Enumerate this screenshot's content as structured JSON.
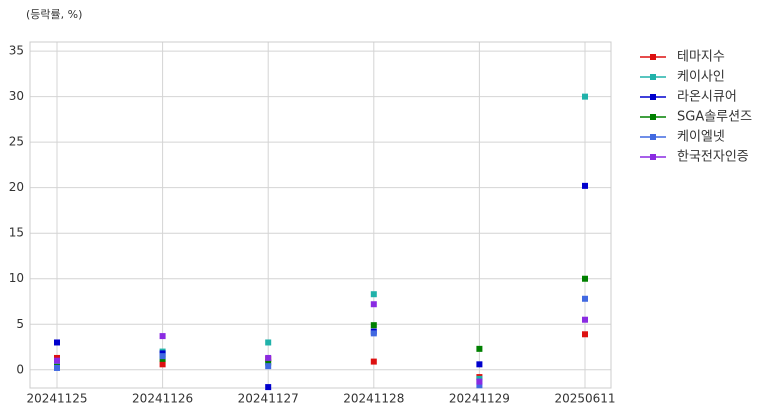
{
  "chart_data": {
    "type": "line",
    "y_label": "(등락률, %)",
    "categories": [
      "20241125",
      "20241126",
      "20241127",
      "20241128",
      "20241129",
      "20250611"
    ],
    "series": [
      {
        "name": "테마지수",
        "color": "#dd1111",
        "values": [
          1.3,
          0.6,
          1.2,
          0.9,
          -0.8,
          3.9
        ]
      },
      {
        "name": "케이사인",
        "color": "#20b2aa",
        "values": [
          0.5,
          2.0,
          3.0,
          8.3,
          -1.0,
          30.0
        ]
      },
      {
        "name": "라온시큐어",
        "color": "#0000cd",
        "values": [
          3.0,
          1.8,
          -1.9,
          4.2,
          0.6,
          20.2
        ]
      },
      {
        "name": "SGA솔루션즈",
        "color": "#008000",
        "values": [
          0.3,
          1.2,
          0.8,
          4.9,
          2.3,
          10.0
        ]
      },
      {
        "name": "케이엘넷",
        "color": "#4169e1",
        "values": [
          0.2,
          1.5,
          0.4,
          4.0,
          -1.7,
          7.8
        ]
      },
      {
        "name": "한국전자인증",
        "color": "#8a2be2",
        "values": [
          1.0,
          3.7,
          1.3,
          7.2,
          -1.3,
          5.5
        ]
      }
    ],
    "ylim": [
      -2,
      36
    ],
    "yticks": [
      0,
      5,
      10,
      15,
      20,
      25,
      30,
      35
    ],
    "grid": true,
    "legend": "outside-right"
  }
}
